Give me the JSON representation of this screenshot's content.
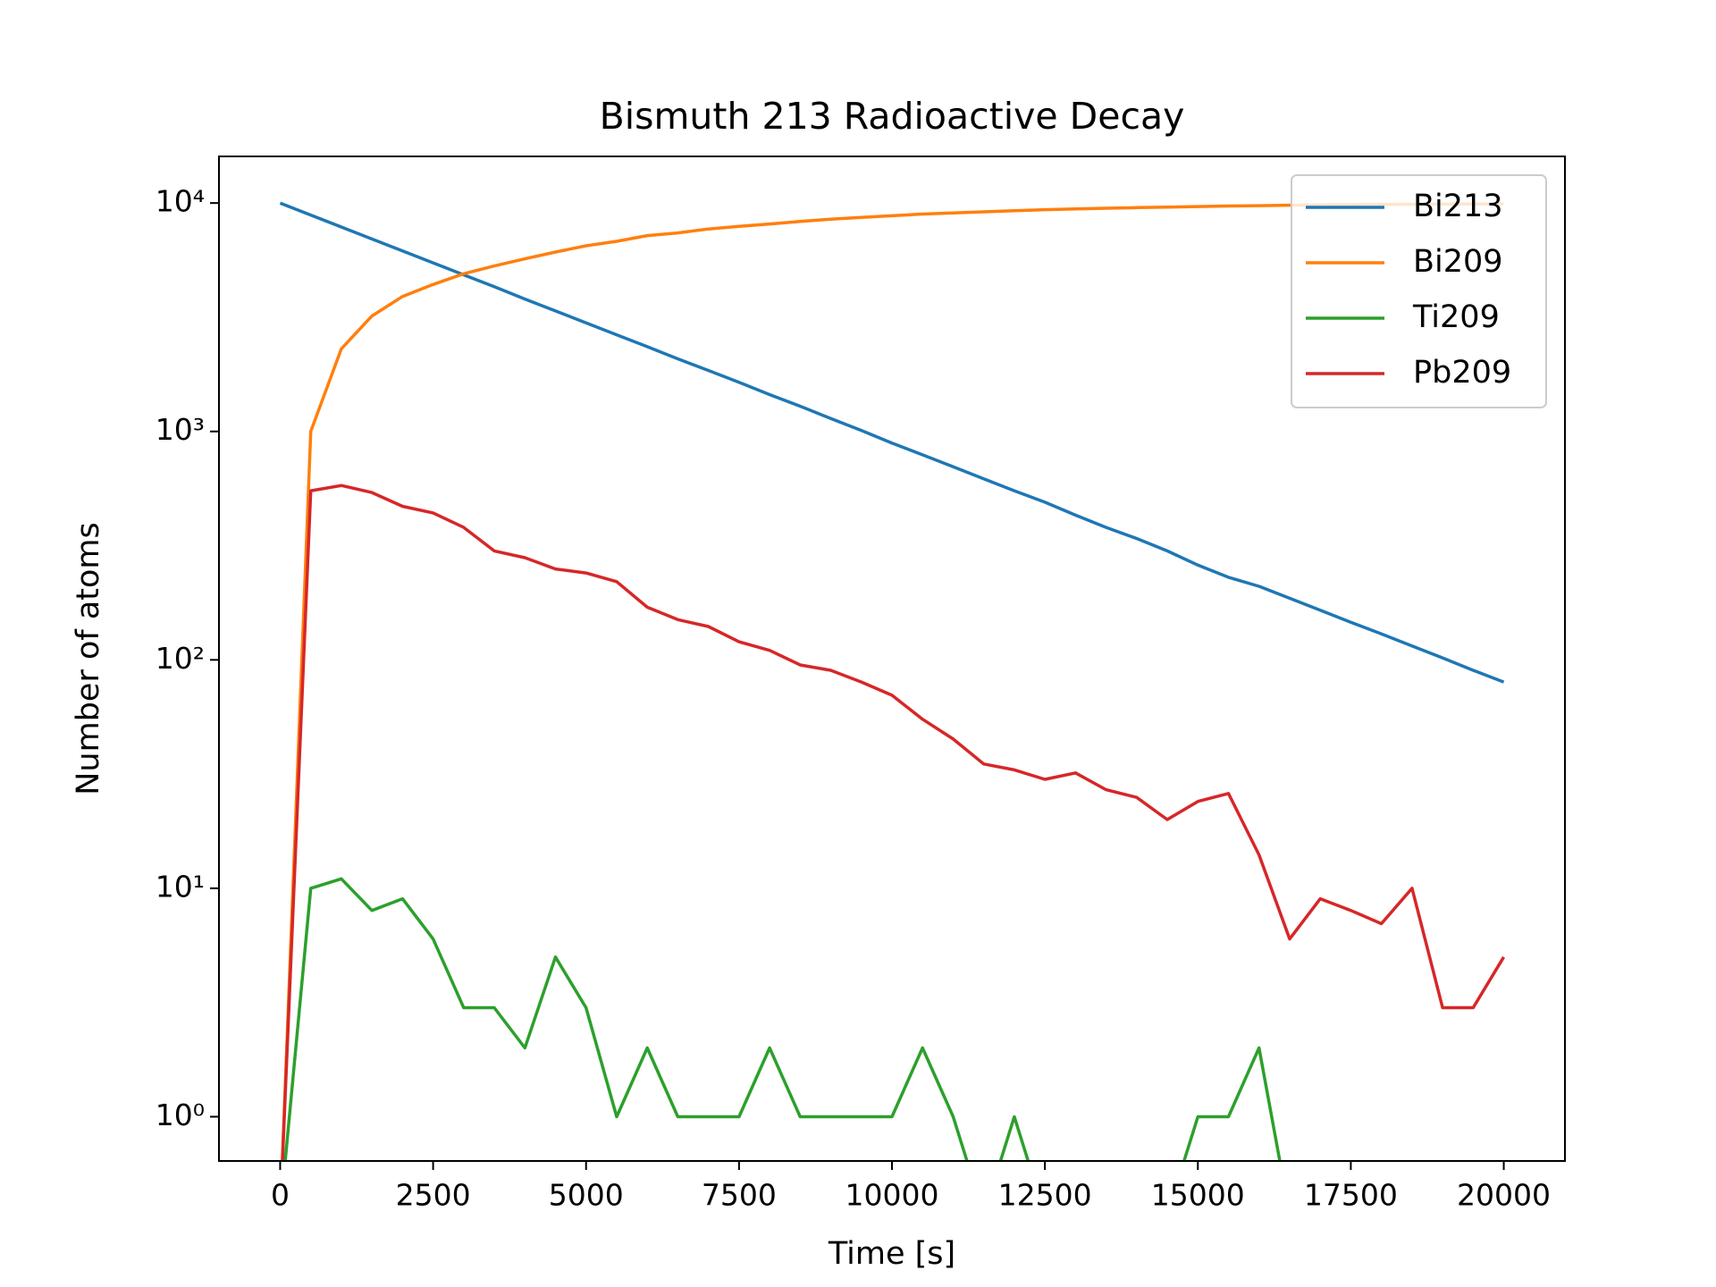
{
  "chart_data": {
    "type": "line",
    "title": "Bismuth 213 Radioactive Decay",
    "xlabel": "Time [s]",
    "ylabel": "Number of atoms",
    "log_y": true,
    "legend": "upper right",
    "xlim": [
      -1000,
      21000
    ],
    "ylim": [
      0.64,
      16000
    ],
    "xticks": [
      0,
      2500,
      5000,
      7500,
      10000,
      12500,
      15000,
      17500,
      20000
    ],
    "yticks": [
      {
        "value": 1,
        "label": "10⁰"
      },
      {
        "value": 10,
        "label": "10¹"
      },
      {
        "value": 100,
        "label": "10²"
      },
      {
        "value": 1000,
        "label": "10³"
      },
      {
        "value": 10000,
        "label": "10⁴"
      }
    ],
    "x": [
      0,
      500,
      1000,
      1500,
      2000,
      2500,
      3000,
      3500,
      4000,
      4500,
      5000,
      5500,
      6000,
      6500,
      7000,
      7500,
      8000,
      8500,
      9000,
      9500,
      10000,
      10500,
      11000,
      11500,
      12000,
      12500,
      13000,
      13500,
      14000,
      14500,
      15000,
      15500,
      16000,
      16500,
      17000,
      17500,
      18000,
      18500,
      19000,
      19500,
      20000
    ],
    "series": [
      {
        "name": "Bi213",
        "color": "#1f77b4",
        "values": [
          10000,
          8860,
          7850,
          6960,
          6170,
          5470,
          4850,
          4300,
          3800,
          3370,
          2990,
          2650,
          2350,
          2080,
          1850,
          1640,
          1450,
          1290,
          1140,
          1010,
          890,
          790,
          700,
          620,
          550,
          490,
          430,
          380,
          340,
          300,
          260,
          230,
          210,
          186,
          165,
          146,
          130,
          115,
          102,
          90,
          80
        ]
      },
      {
        "name": "Bi209",
        "color": "#ff7f0e",
        "values": [
          0,
          1000,
          2300,
          3200,
          3900,
          4400,
          4900,
          5300,
          5700,
          6100,
          6500,
          6800,
          7200,
          7400,
          7700,
          7900,
          8100,
          8300,
          8500,
          8650,
          8800,
          8950,
          9050,
          9150,
          9250,
          9350,
          9420,
          9490,
          9550,
          9600,
          9650,
          9700,
          9740,
          9780,
          9810,
          9840,
          9860,
          9880,
          9890,
          9910,
          9915
        ]
      },
      {
        "name": "Ti209",
        "color": "#2ca02c",
        "values": [
          0,
          10,
          11,
          8,
          9,
          6,
          3,
          3,
          2,
          5,
          3,
          1,
          2,
          1,
          1,
          1,
          2,
          1,
          1,
          1,
          1,
          2,
          1,
          0,
          1,
          0,
          0,
          0,
          0,
          0,
          1,
          1,
          2,
          0,
          0,
          0,
          0,
          0,
          0,
          0,
          0
        ]
      },
      {
        "name": "Pb209",
        "color": "#d62728",
        "values": [
          0,
          550,
          580,
          540,
          470,
          440,
          380,
          300,
          280,
          250,
          240,
          220,
          170,
          150,
          140,
          120,
          110,
          95,
          90,
          80,
          70,
          55,
          45,
          35,
          33,
          30,
          32,
          27,
          25,
          20,
          24,
          26,
          14,
          6,
          9,
          8,
          7,
          10,
          3,
          3,
          5
        ]
      }
    ]
  }
}
